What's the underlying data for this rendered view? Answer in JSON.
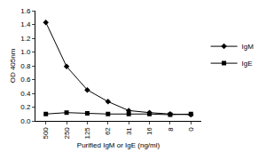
{
  "chart_data": {
    "type": "line",
    "x_label": "Purified IgM or IgE (ng/ml)",
    "y_label": "OD 405nm",
    "categories": [
      "500",
      "250",
      "125",
      "62",
      "31",
      "16",
      "8",
      "0"
    ],
    "series": [
      {
        "name": "IgM",
        "color": "#000000",
        "marker": "diamond",
        "values": [
          1.43,
          0.79,
          0.45,
          0.28,
          0.15,
          0.12,
          0.1,
          0.09
        ]
      },
      {
        "name": "IgE",
        "color": "#000000",
        "marker": "square",
        "values": [
          0.1,
          0.12,
          0.11,
          0.1,
          0.1,
          0.1,
          0.09,
          0.1
        ]
      }
    ],
    "ylim": [
      0,
      1.6
    ],
    "yticks": [
      {
        "value": 0,
        "label": "0.0"
      },
      0.2,
      0.4,
      0.6,
      0.8,
      {
        "value": 1,
        "label": "1.0"
      },
      1.2,
      1.4,
      1.6
    ],
    "grid": false,
    "legend": "right"
  }
}
